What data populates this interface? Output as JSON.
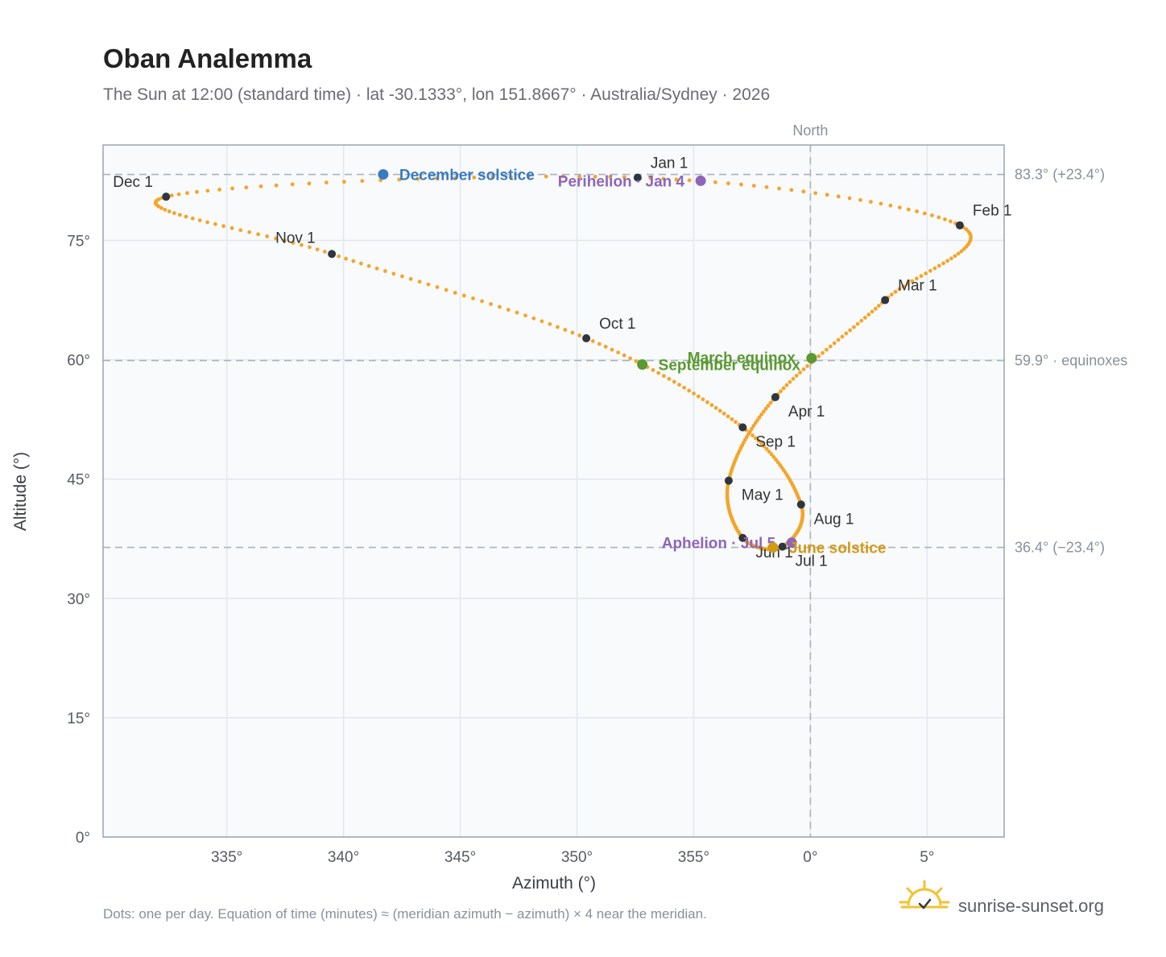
{
  "header": {
    "title": "Oban Analemma",
    "subtitle": "The Sun at 12:00 (standard time) · lat -30.1333°, lon 151.8667° · Australia/Sydney · 2026"
  },
  "footer": {
    "note": "Dots: one per day. Equation of time (minutes) ≈ (meridian azimuth − azimuth) × 4 near the meridian.",
    "brand": "sunrise-sunset.org"
  },
  "colors": {
    "path": "#f4a52a",
    "month_dot": "#2e3640",
    "december_solstice": "#3a7ac0",
    "june_solstice": "#d39a16",
    "equinox": "#5a9a30",
    "apsis": "#8e66b8",
    "ref_line": "#aab3bd",
    "plot_bg": "#f8fafc",
    "grid": "#e3e8ee",
    "frame": "#9aa4b1"
  },
  "chart_data": {
    "type": "scatter",
    "xlabel": "Azimuth (°)",
    "ylabel": "Altitude (°)",
    "xlim": [
      -30.3,
      8.3
    ],
    "ylim": [
      0,
      87
    ],
    "x_ticks": [
      {
        "value": -25,
        "label": "335°"
      },
      {
        "value": -20,
        "label": "340°"
      },
      {
        "value": -15,
        "label": "345°"
      },
      {
        "value": -10,
        "label": "350°"
      },
      {
        "value": -5,
        "label": "355°"
      },
      {
        "value": 0,
        "label": "0°"
      },
      {
        "value": 5,
        "label": "5°"
      }
    ],
    "y_ticks": [
      {
        "value": 0,
        "label": "0°"
      },
      {
        "value": 15,
        "label": "15°"
      },
      {
        "value": 30,
        "label": "30°"
      },
      {
        "value": 45,
        "label": "45°"
      },
      {
        "value": 60,
        "label": "60°"
      },
      {
        "value": 75,
        "label": "75°"
      }
    ],
    "meridian": {
      "x": 0,
      "label": "North"
    },
    "reference_lines": [
      {
        "y": 83.3,
        "label": "83.3° (+23.4°)"
      },
      {
        "y": 59.9,
        "label": "59.9° · equinoxes"
      },
      {
        "y": 36.4,
        "label": "36.4° (−23.4°)"
      }
    ],
    "month_points": [
      {
        "label": "Jan 1",
        "x": -7.4,
        "y": 82.9,
        "lx": 16,
        "ly": -12
      },
      {
        "label": "Feb 1",
        "x": 6.4,
        "y": 76.9,
        "lx": 16,
        "ly": -12
      },
      {
        "label": "Mar 1",
        "x": 3.2,
        "y": 67.5,
        "lx": 16,
        "ly": -12
      },
      {
        "label": "Apr 1",
        "x": -1.5,
        "y": 55.3,
        "lx": 16,
        "ly": 24
      },
      {
        "label": "May 1",
        "x": -3.5,
        "y": 44.8,
        "lx": 16,
        "ly": 24
      },
      {
        "label": "Jun 1",
        "x": -2.9,
        "y": 37.6,
        "lx": 16,
        "ly": 24
      },
      {
        "label": "Jul 1",
        "x": -1.2,
        "y": 36.5,
        "lx": 16,
        "ly": 24
      },
      {
        "label": "Aug 1",
        "x": -0.4,
        "y": 41.8,
        "lx": 16,
        "ly": 24
      },
      {
        "label": "Sep 1",
        "x": -2.9,
        "y": 51.5,
        "lx": 16,
        "ly": 24
      },
      {
        "label": "Oct 1",
        "x": -9.6,
        "y": 62.7,
        "lx": 16,
        "ly": -12
      },
      {
        "label": "Nov 1",
        "x": -20.5,
        "y": 73.3,
        "lx": -70,
        "ly": -14
      },
      {
        "label": "Dec 1",
        "x": -27.6,
        "y": 80.5,
        "lx": -66,
        "ly": -12
      }
    ],
    "events": [
      {
        "label": "December solstice",
        "x": -18.3,
        "y": 83.3,
        "color_key": "december_solstice",
        "anchor": "start",
        "lx": 20,
        "ly": 7
      },
      {
        "label": "Perihelion · Jan 4",
        "x": -4.7,
        "y": 82.5,
        "color_key": "apsis",
        "anchor": "end",
        "lx": -20,
        "ly": 7
      },
      {
        "label": "March equinox",
        "x": 0.05,
        "y": 60.2,
        "color_key": "equinox",
        "anchor": "end",
        "lx": -20,
        "ly": 6
      },
      {
        "label": "September equinox",
        "x": -7.2,
        "y": 59.4,
        "color_key": "equinox",
        "anchor": "start",
        "lx": 20,
        "ly": 7
      },
      {
        "label": "Aphelion · Jul 5",
        "x": -0.8,
        "y": 37.0,
        "color_key": "apsis",
        "anchor": "end",
        "lx": -20,
        "ly": 7
      },
      {
        "label": "June solstice",
        "x": -1.6,
        "y": 36.4,
        "color_key": "june_solstice",
        "anchor": "start",
        "lx": 20,
        "ly": 7
      }
    ]
  }
}
